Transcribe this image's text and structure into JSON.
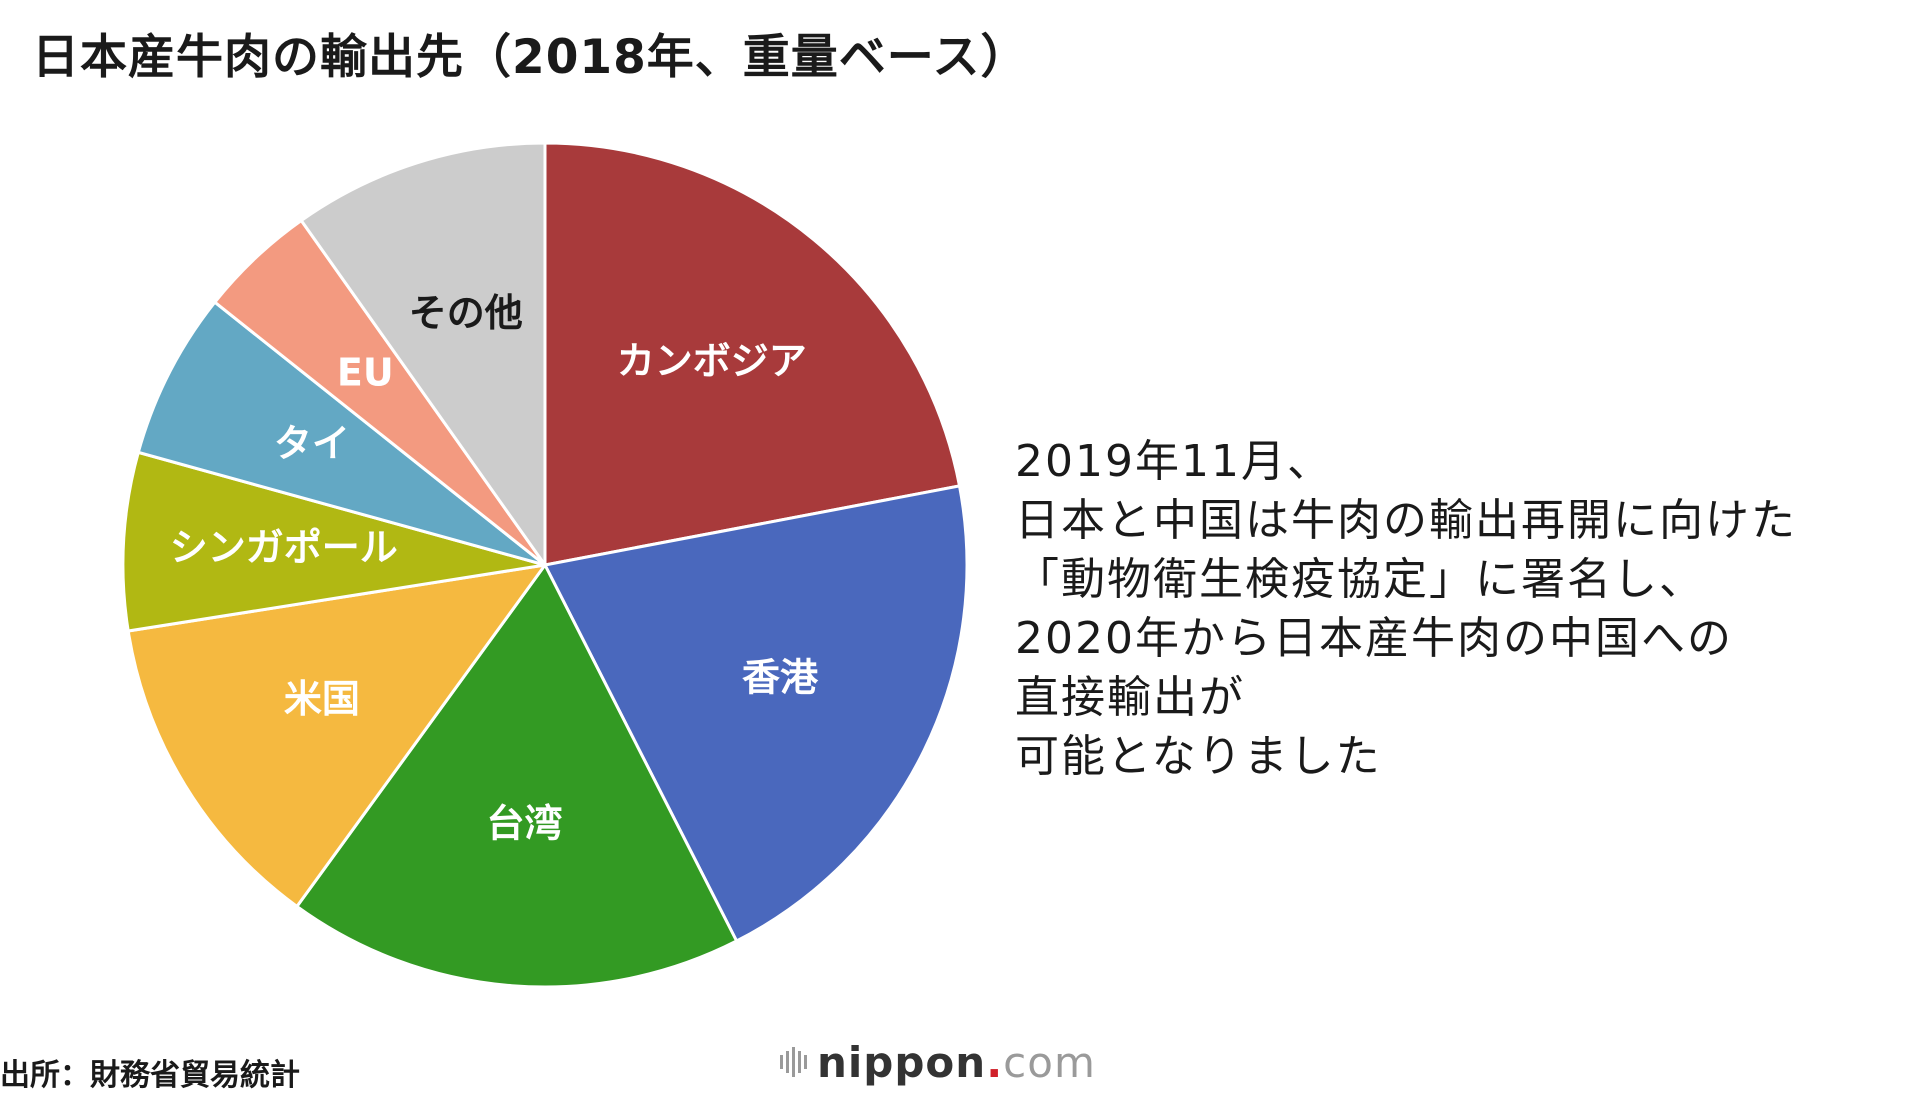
{
  "chart_data": {
    "type": "pie",
    "title": "日本産牛肉の輸出先（2018年、重量ベース）",
    "slices": [
      {
        "label": "カンボジア",
        "value": 22.0,
        "color": "#a83a3b",
        "label_color": "#ffffff"
      },
      {
        "label": "香港",
        "value": 20.5,
        "color": "#4a68bd",
        "label_color": "#ffffff"
      },
      {
        "label": "台湾",
        "value": 17.5,
        "color": "#339a23",
        "label_color": "#ffffff"
      },
      {
        "label": "米国",
        "value": 12.5,
        "color": "#f5b940",
        "label_color": "#ffffff"
      },
      {
        "label": "シンガポール",
        "value": 6.8,
        "color": "#b1b813",
        "label_color": "#ffffff"
      },
      {
        "label": "タイ",
        "value": 6.4,
        "color": "#63a8c4",
        "label_color": "#ffffff"
      },
      {
        "label": "EU",
        "value": 4.5,
        "color": "#f39a80",
        "label_color": "#ffffff"
      },
      {
        "label": "その他",
        "value": 9.8,
        "color": "#cccccc",
        "label_color": "#1a1a1a"
      }
    ]
  },
  "note": {
    "lines": [
      "2019年11月、",
      "日本と中国は牛肉の輸出再開に向けた",
      "「動物衛生検疫協定」に署名し、",
      "2020年から日本産牛肉の中国への",
      "直接輸出が",
      "可能となりました"
    ]
  },
  "source": "出所：財務省貿易統計",
  "logo": {
    "name": "nippon",
    "dot": ".",
    "suffix": "com",
    "icon": "nippon-logo-bars-icon"
  }
}
